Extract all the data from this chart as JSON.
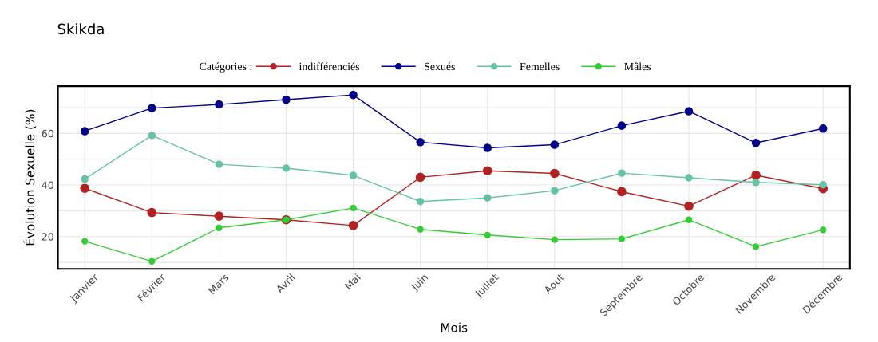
{
  "chart_data": {
    "type": "line",
    "title": "Skikda",
    "xlabel": "Mois",
    "ylabel": "Évolution Sexuelle (%)",
    "legend_title": "Catégories :",
    "categories": [
      "Janvier",
      "Février",
      "Mars",
      "Avril",
      "Mai",
      "Juin",
      "Juillet",
      "Aout",
      "Septembre",
      "Octobre",
      "Novembre",
      "Décembre"
    ],
    "series": [
      {
        "name": "indifférenciés",
        "color": "#b22222",
        "values": [
          38.7,
          29.3,
          27.9,
          26.5,
          24.3,
          43.0,
          45.5,
          44.5,
          37.4,
          31.8,
          43.8,
          38.6
        ]
      },
      {
        "name": "Sexués",
        "color": "#00008b",
        "values": [
          60.9,
          69.8,
          71.2,
          73.1,
          74.9,
          56.6,
          54.4,
          55.6,
          63.0,
          68.6,
          56.3,
          61.9
        ]
      },
      {
        "name": "Femelles",
        "color": "#66c2a5",
        "values": [
          42.3,
          59.2,
          48.0,
          46.5,
          43.7,
          33.6,
          35.0,
          37.8,
          44.6,
          42.8,
          41.0,
          40.1
        ]
      },
      {
        "name": "Mâles",
        "color": "#32cd32",
        "values": [
          18.2,
          10.4,
          23.4,
          26.5,
          31.1,
          22.8,
          20.6,
          18.8,
          19.1,
          26.5,
          16.1,
          22.6
        ]
      }
    ],
    "ylim": [
      7.5,
      78.3
    ],
    "yticks": [
      {
        "value": 10,
        "label": null
      },
      20,
      {
        "value": 30,
        "label": null
      },
      40,
      {
        "value": 50,
        "label": null
      },
      60,
      {
        "value": 70,
        "label": null
      }
    ],
    "grid": true,
    "legend": "top",
    "marker": "circle",
    "line_style": "solid"
  }
}
